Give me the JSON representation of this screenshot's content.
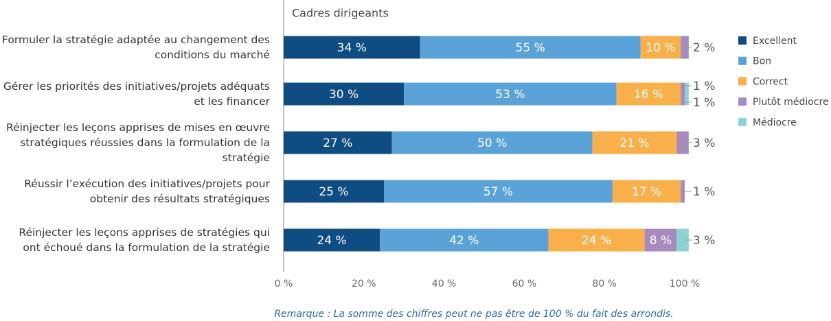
{
  "chart_data": {
    "type": "stacked-bar-horizontal",
    "subtitle": "Cadres dirigeants",
    "note": "Remarque : La somme des chiffres peut ne pas être de 100 % du fait des arrondis.",
    "categories": [
      "Formuler la stratégie adaptée au changement des conditions du marché",
      "Gérer les priorités des initiatives/projets adéquats et les financer",
      "Réinjecter les leçons apprises de mises en œuvre stratégiques réussies dans la formulation de la stratégie",
      "Réussir l’exécution des initiatives/projets pour obtenir des résultats stratégiques",
      "Réinjecter les leçons apprises de stratégies qui ont échoué dans la formulation de la stratégie"
    ],
    "series": [
      {
        "name": "Excellent",
        "color": "#0f4c81",
        "values": [
          34,
          30,
          27,
          25,
          24
        ],
        "value_labels": [
          "34 %",
          "30 %",
          "27 %",
          "25 %",
          "24 %"
        ]
      },
      {
        "name": "Bon",
        "color": "#5aa2d8",
        "values": [
          55,
          53,
          50,
          57,
          42
        ],
        "value_labels": [
          "55 %",
          "53 %",
          "50 %",
          "57 %",
          "42 %"
        ]
      },
      {
        "name": "Correct",
        "color": "#f9b04a",
        "values": [
          10,
          16,
          21,
          17,
          24
        ],
        "value_labels": [
          "10 %",
          "16 %",
          "21 %",
          "17 %",
          "24 %"
        ]
      },
      {
        "name": "Plutôt médiocre",
        "color": "#a78bbf",
        "values": [
          2,
          1,
          3,
          1,
          8
        ],
        "value_labels": [
          "2 %",
          "1 %",
          "3 %",
          "1 %",
          "8 %"
        ]
      },
      {
        "name": "Médiocre",
        "color": "#8dd3d6",
        "values": [
          null,
          1,
          null,
          null,
          3
        ],
        "value_labels": [
          null,
          "1 %",
          null,
          null,
          "3 %"
        ]
      }
    ],
    "xlim": [
      0,
      100
    ],
    "xticks": [
      {
        "value": 0,
        "label": "0 %"
      },
      {
        "value": 20,
        "label": "20 %"
      },
      {
        "value": 40,
        "label": "40 %"
      },
      {
        "value": 60,
        "label": "60 %"
      },
      {
        "value": 80,
        "label": "80 %"
      },
      {
        "value": 100,
        "label": "100 %"
      }
    ],
    "legend": "right"
  }
}
